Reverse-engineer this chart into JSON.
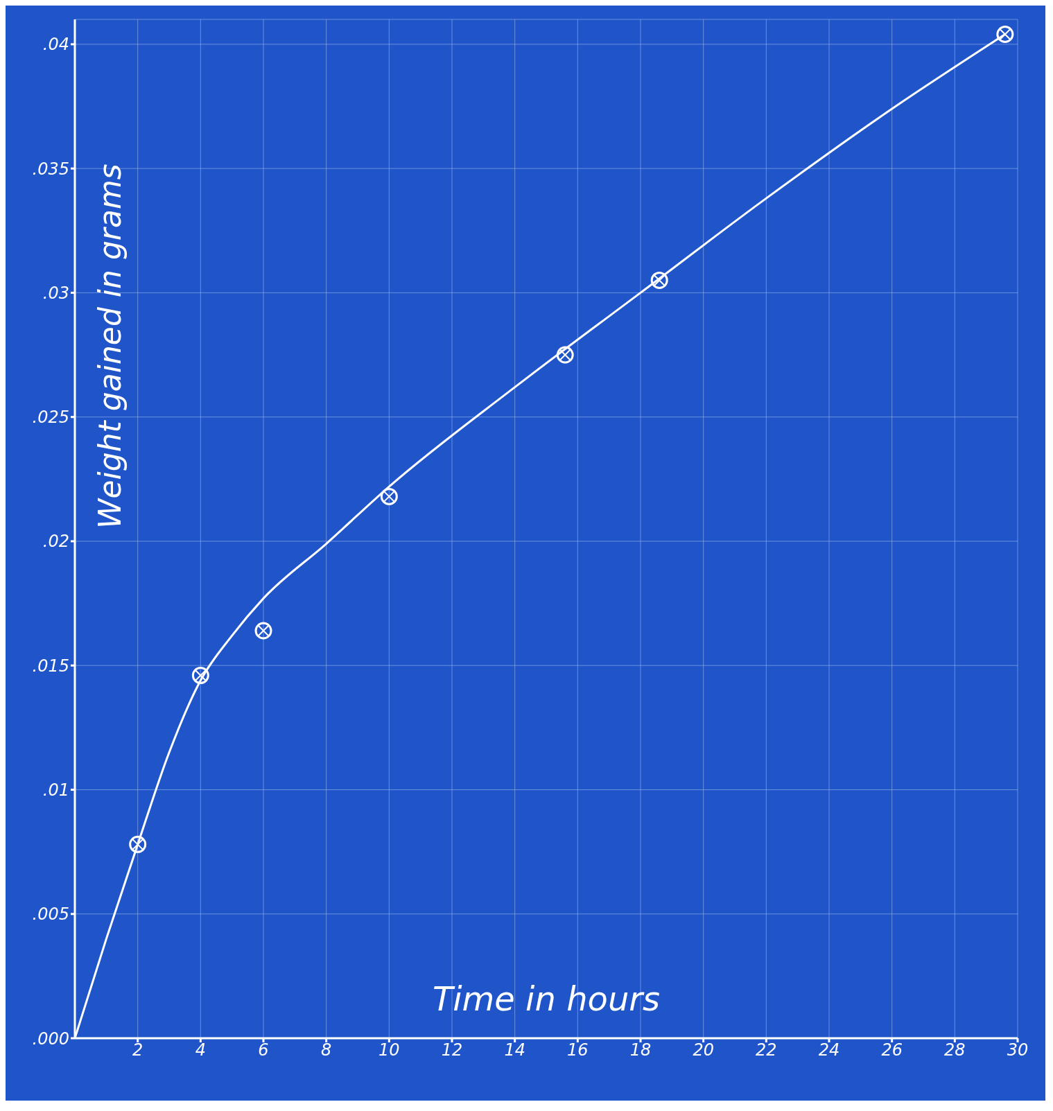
{
  "chart_data": {
    "type": "scatter",
    "xlabel": "Time in hours",
    "ylabel": "Weight gained in grams",
    "xlim": [
      0,
      30
    ],
    "xticks": [
      2,
      4,
      6,
      8,
      10,
      12,
      14,
      16,
      18,
      20,
      22,
      24,
      26,
      28,
      30
    ],
    "ylim": [
      0,
      0.041
    ],
    "yticks": [
      {
        "value": 0,
        "label": ".000"
      },
      {
        "value": 0.005,
        "label": ".005"
      },
      {
        "value": 0.01,
        "label": ".01"
      },
      {
        "value": 0.015,
        "label": ".015"
      },
      {
        "value": 0.02,
        "label": ".02"
      },
      {
        "value": 0.025,
        "label": ".025"
      },
      {
        "value": 0.03,
        "label": ".03"
      },
      {
        "value": 0.035,
        "label": ".035"
      },
      {
        "value": 0.04,
        "label": ".04"
      }
    ],
    "grid": true,
    "legend": false,
    "series": [
      {
        "type": "scatter",
        "color": "#ffffff",
        "marker": "circle",
        "x": [
          2,
          4,
          6,
          10,
          15.6,
          18.6,
          29.6
        ],
        "values": [
          0.0078,
          0.0146,
          0.0164,
          0.0218,
          0.0275,
          0.0305,
          0.0404
        ]
      },
      {
        "type": "line",
        "color": "#ffffff",
        "marker": "none",
        "line_style": "solid",
        "x": [
          0,
          1,
          2,
          3,
          4,
          5,
          6,
          8,
          10,
          14,
          18,
          22,
          26,
          29.6
        ],
        "values": [
          0,
          0.004,
          0.0078,
          0.0115,
          0.0144,
          0.0162,
          0.0177,
          0.0199,
          0.0222,
          0.0262,
          0.03,
          0.0338,
          0.0374,
          0.0404
        ]
      }
    ]
  }
}
